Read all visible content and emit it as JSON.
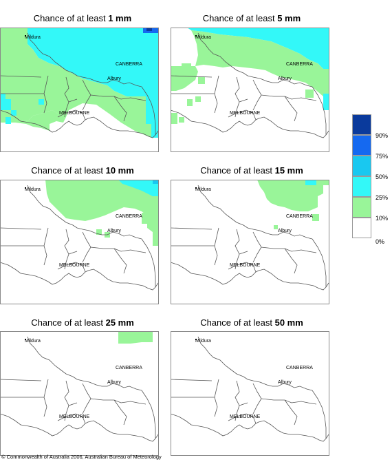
{
  "title_prefix": "Chance of at least",
  "panels": [
    {
      "amount": "1 mm"
    },
    {
      "amount": "5 mm"
    },
    {
      "amount": "10 mm"
    },
    {
      "amount": "15 mm"
    },
    {
      "amount": "25 mm"
    },
    {
      "amount": "50 mm"
    }
  ],
  "place_labels": {
    "mildura": "Mildura",
    "canberra": "CANBERRA",
    "albury": "Albury",
    "melbourne": "MELBOURNE"
  },
  "legend": {
    "classes": [
      {
        "label": "90%",
        "color": "#0a3a9c"
      },
      {
        "label": "75%",
        "color": "#1569f0"
      },
      {
        "label": "50%",
        "color": "#19c8f0"
      },
      {
        "label": "25%",
        "color": "#33f8f8"
      },
      {
        "label": "10%",
        "color": "#99f599"
      },
      {
        "label": "0%",
        "color": "#ffffff"
      }
    ]
  },
  "copyright": "© Commonwealth of Australia 2006, Australian Bureau of Meteorology"
}
